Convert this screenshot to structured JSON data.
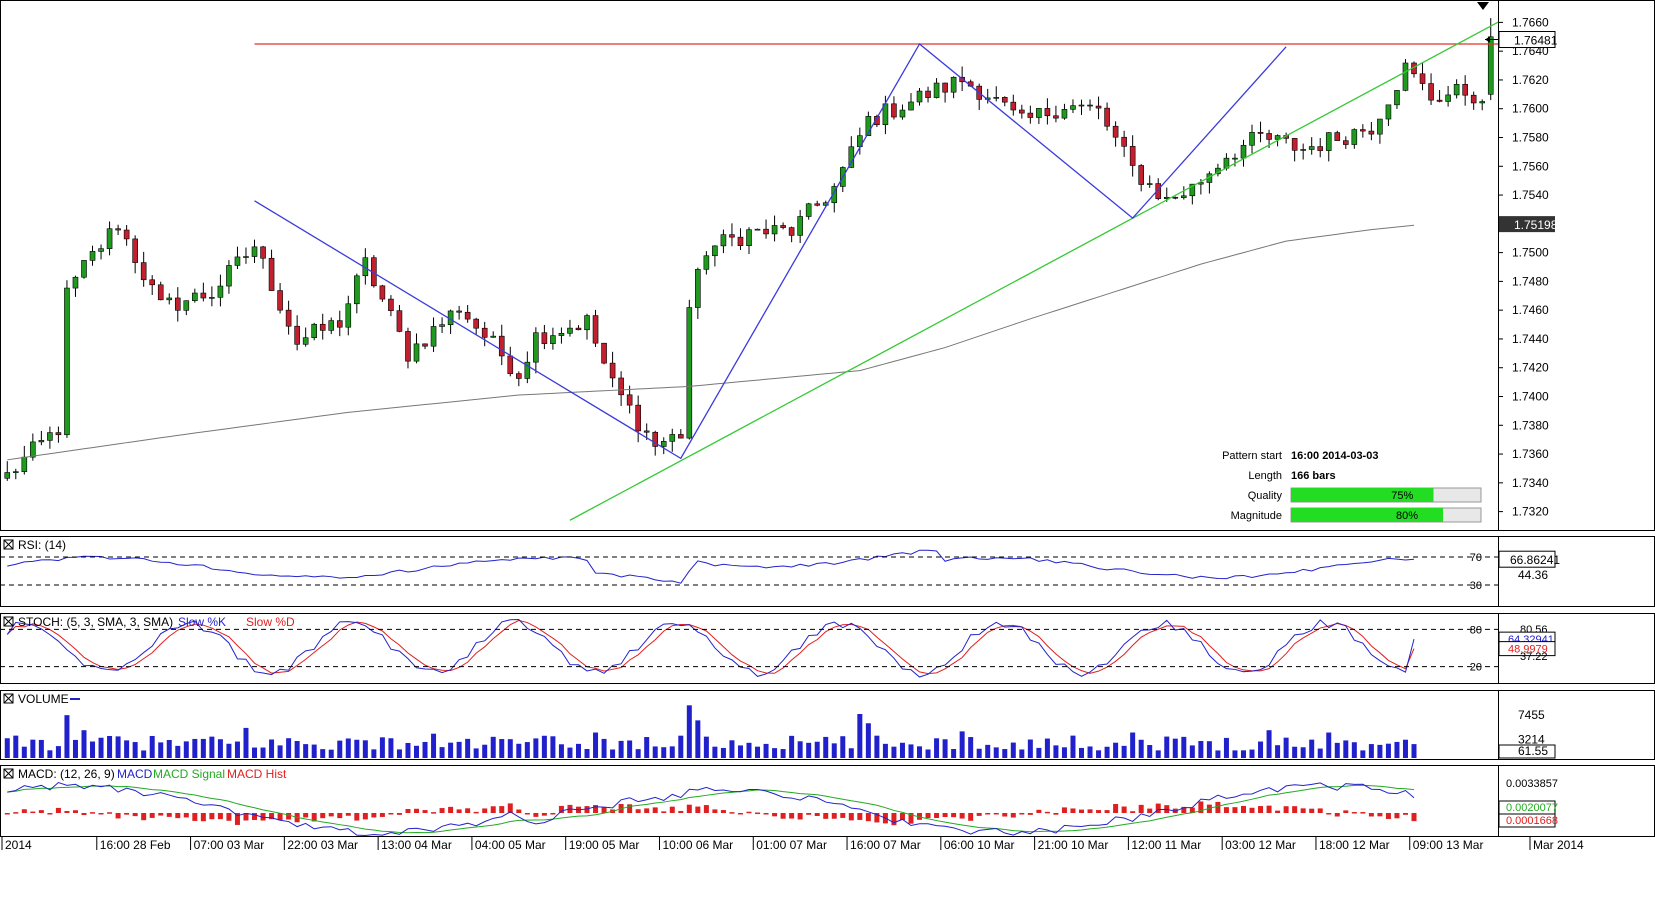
{
  "colors": {
    "up": "#1f9a1f",
    "down": "#c21f2f",
    "zigzag": "#3b3bdd",
    "trendline": "#35c935",
    "resistance": "#e03030",
    "ma": "#777777",
    "rsi": "#2222cc",
    "stoch_k": "#2222cc",
    "stoch_d": "#e02020",
    "volume": "#2020cc",
    "macd": "#2222cc",
    "macd_signal": "#22aa22",
    "macd_hist": "#e02020",
    "panel_border": "#000000",
    "grid_dash": "#000000"
  },
  "pattern_box": {
    "rows": [
      {
        "label": "Pattern start",
        "value": "16:00 2014-03-03"
      },
      {
        "label": "Length",
        "value": "166 bars"
      },
      {
        "label": "Quality",
        "value": "75%",
        "percent": 75
      },
      {
        "label": "Magnitude",
        "value": "80%",
        "percent": 80
      }
    ]
  },
  "chart_data": [
    {
      "type": "candlestick",
      "panel": "price",
      "ylim": [
        1.731,
        1.767
      ],
      "yticks": [
        "1.7660",
        "1.7640",
        "1.7620",
        "1.7600",
        "1.7580",
        "1.7560",
        "1.7540",
        "1.7520",
        "1.7500",
        "1.7480",
        "1.7460",
        "1.7440",
        "1.7420",
        "1.7400",
        "1.7380",
        "1.7360",
        "1.7340",
        "1.7320"
      ],
      "last_price_label": "1.76481",
      "ma_label": "1.75198",
      "bars_count": 166,
      "x_labels": [
        "2014",
        "16:00 28 Feb",
        "07:00 03 Mar",
        "22:00 03 Mar",
        "13:00 04 Mar",
        "04:00 05 Mar",
        "19:00 05 Mar",
        "10:00 06 Mar",
        "01:00 07 Mar",
        "16:00 07 Mar",
        "06:00 10 Mar",
        "21:00 10 Mar",
        "12:00 11 Mar",
        "03:00 12 Mar",
        "18:00 12 Mar",
        "09:00 13 Mar",
        "Mar 2014"
      ],
      "x_label_bars": [
        0,
        11,
        22,
        33,
        44,
        55,
        66,
        77,
        88,
        99,
        110,
        121,
        132,
        143,
        154,
        165,
        170
      ],
      "anchors": [
        [
          0,
          1.7345
        ],
        [
          6,
          1.7378
        ],
        [
          7,
          1.747
        ],
        [
          9,
          1.749
        ],
        [
          13,
          1.752
        ],
        [
          18,
          1.7462
        ],
        [
          24,
          1.7472
        ],
        [
          29,
          1.7505
        ],
        [
          34,
          1.7438
        ],
        [
          39,
          1.7452
        ],
        [
          42,
          1.7492
        ],
        [
          47,
          1.743
        ],
        [
          53,
          1.7462
        ],
        [
          60,
          1.7416
        ],
        [
          62,
          1.7442
        ],
        [
          68,
          1.7452
        ],
        [
          71,
          1.7408
        ],
        [
          76,
          1.7366
        ],
        [
          79,
          1.7374
        ],
        [
          80,
          1.7462
        ],
        [
          82,
          1.7502
        ],
        [
          87,
          1.7514
        ],
        [
          92,
          1.7515
        ],
        [
          97,
          1.7545
        ],
        [
          101,
          1.7592
        ],
        [
          107,
          1.7608
        ],
        [
          112,
          1.762
        ],
        [
          115,
          1.761
        ],
        [
          119,
          1.759
        ],
        [
          124,
          1.7603
        ],
        [
          128,
          1.7598
        ],
        [
          132,
          1.7558
        ],
        [
          136,
          1.7536
        ],
        [
          139,
          1.7545
        ],
        [
          143,
          1.7568
        ],
        [
          147,
          1.758
        ],
        [
          152,
          1.7572
        ],
        [
          156,
          1.758
        ],
        [
          160,
          1.7588
        ],
        [
          164,
          1.7628
        ],
        [
          167,
          1.7608
        ],
        [
          171,
          1.7612
        ],
        [
          174,
          1.7605
        ]
      ],
      "zigzag": [
        [
          29,
          1.7536
        ],
        [
          79,
          1.7357
        ],
        [
          107,
          1.7645
        ],
        [
          132,
          1.7524
        ],
        [
          150,
          1.7643
        ]
      ],
      "trendline": [
        [
          66,
          1.7314
        ],
        [
          166,
          1.7632
        ]
      ],
      "resistance": {
        "from_bar": 29,
        "to_bar": 166,
        "y": 1.7645
      },
      "ma": [
        [
          0,
          1.7356
        ],
        [
          20,
          1.7373
        ],
        [
          40,
          1.7389
        ],
        [
          60,
          1.7401
        ],
        [
          80,
          1.7407
        ],
        [
          100,
          1.7418
        ],
        [
          110,
          1.7434
        ],
        [
          120,
          1.7454
        ],
        [
          130,
          1.7473
        ],
        [
          140,
          1.7492
        ],
        [
          150,
          1.7508
        ],
        [
          160,
          1.7516
        ],
        [
          165,
          1.7519
        ]
      ]
    },
    {
      "type": "line",
      "panel": "rsi",
      "title": "RSI: (14)",
      "ylim": [
        0,
        100
      ],
      "levels": [
        70,
        30
      ],
      "level_labels": [
        "70",
        "30"
      ],
      "right_labels": [
        "66.86241",
        "44.36"
      ]
    },
    {
      "type": "line",
      "panel": "stoch",
      "title": "STOCH: (5, 3, SMA, 3, SMA)",
      "series": [
        {
          "name": "Slow %K"
        },
        {
          "name": "Slow %D"
        }
      ],
      "ylim": [
        0,
        100
      ],
      "levels": [
        80,
        20
      ],
      "level_labels": [
        "80",
        "20"
      ],
      "right_labels": [
        "80.56",
        "64.32941",
        "48.9979",
        "37.22"
      ]
    },
    {
      "type": "bar",
      "panel": "volume",
      "title": "VOLUME",
      "right_labels": [
        "7455",
        "3214",
        "61.55"
      ],
      "spikes": [
        [
          7,
          7400
        ],
        [
          9,
          4800
        ],
        [
          12,
          3800
        ],
        [
          28,
          5200
        ],
        [
          50,
          4200
        ],
        [
          69,
          4400
        ],
        [
          80,
          9100
        ],
        [
          81,
          6500
        ],
        [
          100,
          7600
        ],
        [
          101,
          6000
        ],
        [
          112,
          4600
        ],
        [
          132,
          4400
        ],
        [
          148,
          4800
        ],
        [
          155,
          4400
        ],
        [
          170,
          3600
        ]
      ]
    },
    {
      "type": "line",
      "panel": "macd",
      "title": "MACD: (12, 26, 9)",
      "series": [
        {
          "name": "MACD"
        },
        {
          "name": "MACD Signal"
        },
        {
          "name": "MACD Hist"
        }
      ],
      "right_labels": [
        "0.0033857",
        "0.0020077",
        "0.0001668"
      ]
    }
  ]
}
